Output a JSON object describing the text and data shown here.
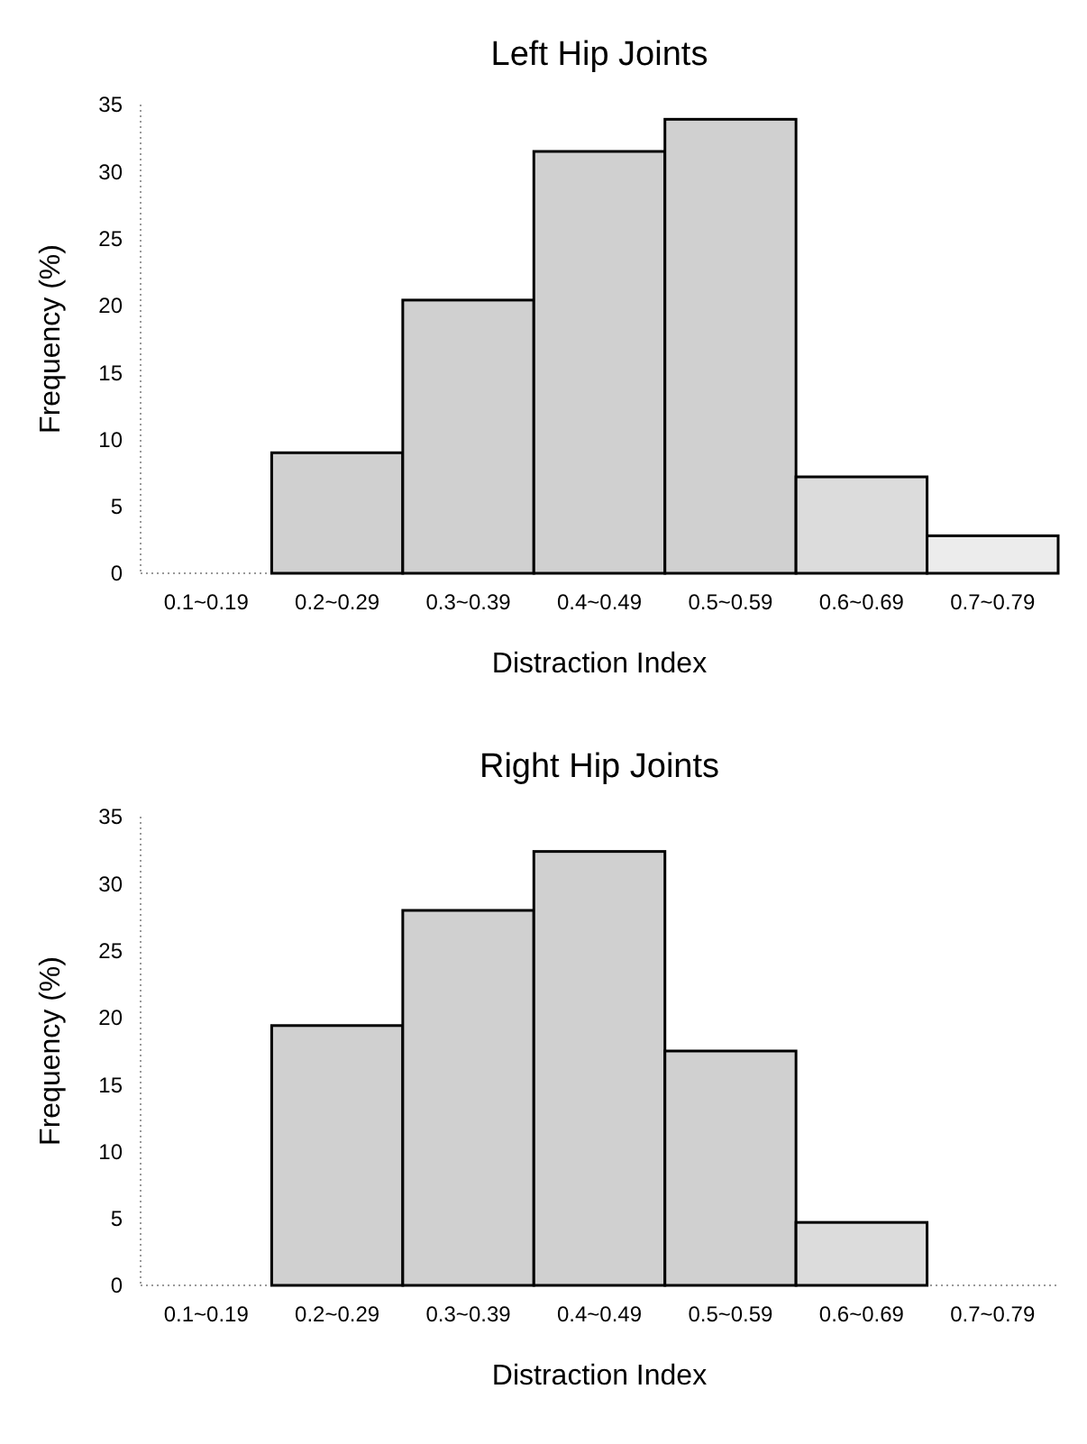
{
  "chart_data": [
    {
      "type": "bar",
      "title": "Left Hip Joints",
      "xlabel": "Distraction Index",
      "ylabel": "Frequency (%)",
      "categories": [
        "0.1~0.19",
        "0.2~0.29",
        "0.3~0.39",
        "0.4~0.49",
        "0.5~0.59",
        "0.6~0.69",
        "0.7~0.79"
      ],
      "values": [
        0,
        9,
        20.4,
        31.5,
        33.9,
        7.2,
        2.8
      ],
      "colors": [
        "#d0d0d0",
        "#d0d0d0",
        "#d0d0d0",
        "#d0d0d0",
        "#d0d0d0",
        "#dcdcdc",
        "#ececec"
      ],
      "ylim": [
        0,
        35
      ],
      "yticks": [
        0,
        5,
        10,
        15,
        20,
        25,
        30,
        35
      ]
    },
    {
      "type": "bar",
      "title": "Right Hip Joints",
      "xlabel": "Distraction Index",
      "ylabel": "Frequency (%)",
      "categories": [
        "0.1~0.19",
        "0.2~0.29",
        "0.3~0.39",
        "0.4~0.49",
        "0.5~0.59",
        "0.6~0.69",
        "0.7~0.79"
      ],
      "values": [
        0,
        19.4,
        28,
        32.4,
        17.5,
        4.7,
        0
      ],
      "colors": [
        "#d0d0d0",
        "#d0d0d0",
        "#d0d0d0",
        "#d0d0d0",
        "#d0d0d0",
        "#dcdcdc",
        "#ececec"
      ],
      "ylim": [
        0,
        35
      ],
      "yticks": [
        0,
        5,
        10,
        15,
        20,
        25,
        30,
        35
      ]
    }
  ]
}
